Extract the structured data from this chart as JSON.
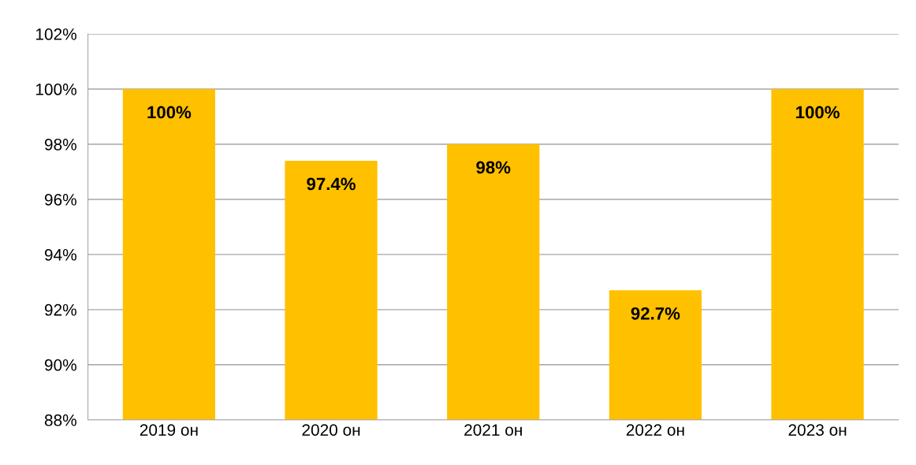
{
  "chart_data": {
    "type": "bar",
    "categories": [
      "2019 он",
      "2020 он",
      "2021 он",
      "2022 он",
      "2023 он"
    ],
    "values": [
      100,
      97.4,
      98,
      92.7,
      100
    ],
    "value_labels": [
      "100%",
      "97.4%",
      "98%",
      "92.7%",
      "100%"
    ],
    "color": "#ffc000",
    "ylim": [
      88,
      102
    ],
    "yticks": [
      {
        "value": 88,
        "label": "88%"
      },
      {
        "value": 90,
        "label": "90%"
      },
      {
        "value": 92,
        "label": "92%"
      },
      {
        "value": 94,
        "label": "94%"
      },
      {
        "value": 96,
        "label": "96%"
      },
      {
        "value": 98,
        "label": "98%"
      },
      {
        "value": 100,
        "label": "100%"
      },
      {
        "value": 102,
        "label": "102%"
      }
    ],
    "grid": "y",
    "legend": false
  }
}
